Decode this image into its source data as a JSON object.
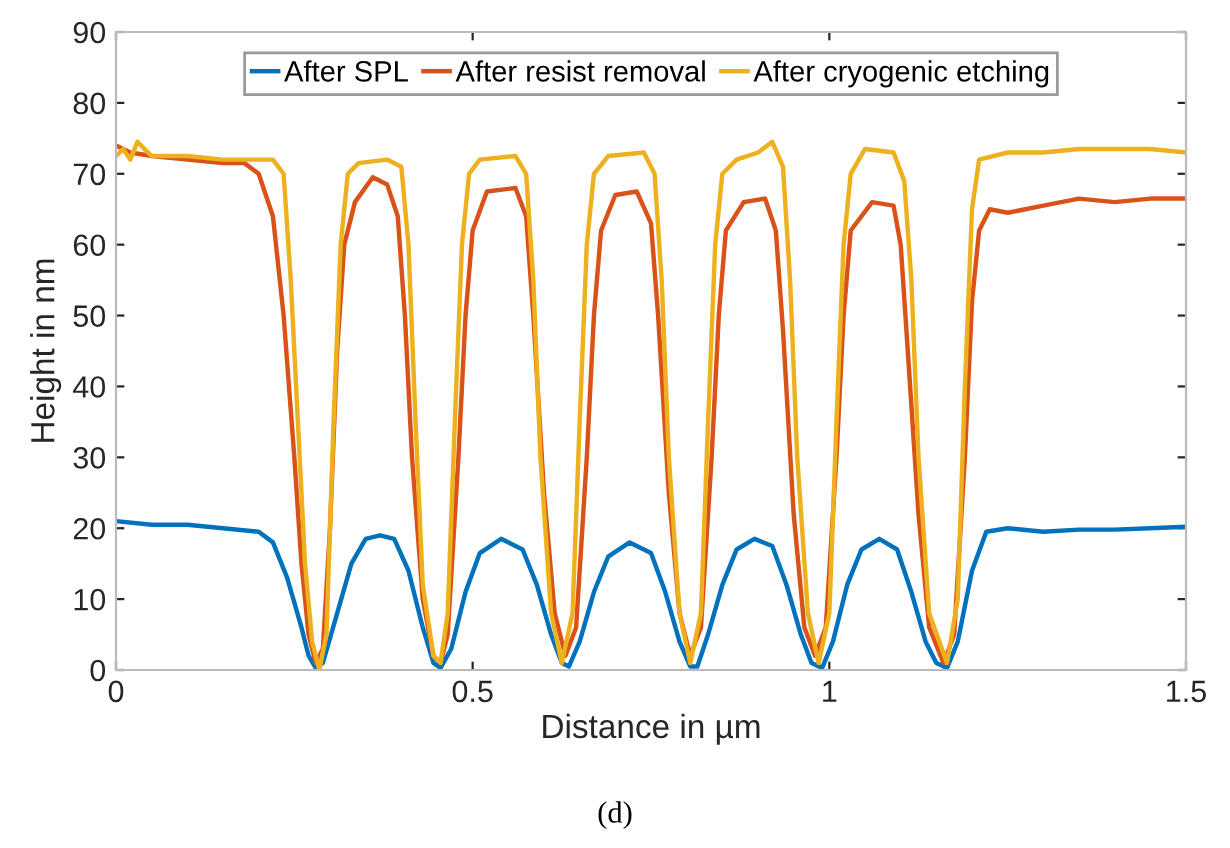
{
  "chart_data": {
    "type": "line",
    "xlabel": "Distance in µm",
    "ylabel": "Height in nm",
    "xlim": [
      0,
      1.5
    ],
    "xticks": [
      0,
      0.5,
      1,
      1.5
    ],
    "ylim": [
      0,
      90
    ],
    "yticks": [
      0,
      10,
      20,
      30,
      40,
      50,
      60,
      70,
      80,
      90
    ],
    "grid": false,
    "legend": "top",
    "marker": "none",
    "line_style": "solid",
    "annotations": [
      "(d)"
    ],
    "series": [
      {
        "name": "After SPL",
        "color": "#0072bd",
        "x": [
          0,
          0.05,
          0.1,
          0.15,
          0.2,
          0.22,
          0.24,
          0.26,
          0.27,
          0.28,
          0.29,
          0.31,
          0.33,
          0.35,
          0.37,
          0.39,
          0.41,
          0.43,
          0.445,
          0.455,
          0.47,
          0.49,
          0.51,
          0.54,
          0.57,
          0.59,
          0.61,
          0.625,
          0.635,
          0.65,
          0.67,
          0.69,
          0.72,
          0.75,
          0.77,
          0.79,
          0.805,
          0.815,
          0.83,
          0.85,
          0.87,
          0.895,
          0.92,
          0.94,
          0.96,
          0.975,
          0.99,
          1.005,
          1.025,
          1.045,
          1.07,
          1.095,
          1.115,
          1.135,
          1.15,
          1.165,
          1.18,
          1.2,
          1.22,
          1.25,
          1.3,
          1.35,
          1.4,
          1.45,
          1.5
        ],
        "values": [
          21,
          20.5,
          20.5,
          20,
          19.5,
          18,
          13,
          6,
          2,
          0.3,
          1,
          8,
          15,
          18.5,
          19,
          18.5,
          14,
          6,
          1,
          0.3,
          3,
          11,
          16.5,
          18.5,
          17,
          12,
          5,
          1,
          0.5,
          4,
          11,
          16,
          18,
          16.5,
          11,
          4,
          0.5,
          0.5,
          5,
          12,
          17,
          18.5,
          17.5,
          12,
          5,
          1,
          0.3,
          4,
          12,
          17,
          18.5,
          17,
          11,
          4,
          1,
          0.3,
          4,
          14,
          19.5,
          20,
          19.5,
          19.8,
          19.8,
          20,
          20.2
        ]
      },
      {
        "name": "After resist removal",
        "color": "#d95319",
        "x": [
          0,
          0.02,
          0.05,
          0.1,
          0.15,
          0.18,
          0.2,
          0.22,
          0.235,
          0.25,
          0.26,
          0.27,
          0.28,
          0.29,
          0.3,
          0.31,
          0.32,
          0.335,
          0.36,
          0.38,
          0.395,
          0.405,
          0.415,
          0.43,
          0.445,
          0.455,
          0.465,
          0.48,
          0.49,
          0.5,
          0.52,
          0.56,
          0.575,
          0.585,
          0.6,
          0.615,
          0.63,
          0.645,
          0.66,
          0.67,
          0.68,
          0.7,
          0.73,
          0.75,
          0.76,
          0.775,
          0.79,
          0.805,
          0.82,
          0.835,
          0.845,
          0.855,
          0.88,
          0.91,
          0.925,
          0.935,
          0.95,
          0.965,
          0.98,
          0.995,
          1.01,
          1.02,
          1.03,
          1.06,
          1.09,
          1.1,
          1.11,
          1.125,
          1.14,
          1.16,
          1.175,
          1.19,
          1.2,
          1.21,
          1.225,
          1.25,
          1.3,
          1.35,
          1.4,
          1.45,
          1.5
        ],
        "values": [
          74,
          73,
          72.5,
          72,
          71.5,
          71.5,
          70,
          64,
          50,
          30,
          15,
          5,
          1,
          3,
          20,
          45,
          60,
          66,
          69.5,
          68.5,
          64,
          50,
          30,
          10,
          2,
          1,
          5,
          30,
          50,
          62,
          67.5,
          68,
          64,
          50,
          25,
          8,
          2,
          6,
          30,
          50,
          62,
          67,
          67.5,
          63,
          50,
          25,
          8,
          2,
          6,
          30,
          50,
          62,
          66,
          66.5,
          62,
          48,
          22,
          6,
          2,
          6,
          30,
          50,
          62,
          66,
          65.5,
          60,
          45,
          22,
          6,
          1,
          5,
          30,
          52,
          62,
          65,
          64.5,
          65.5,
          66.5,
          66,
          66.5,
          66.5
        ]
      },
      {
        "name": "After cryogenic etching",
        "color": "#edb120",
        "x": [
          0,
          0.01,
          0.02,
          0.03,
          0.05,
          0.1,
          0.15,
          0.2,
          0.22,
          0.235,
          0.245,
          0.255,
          0.265,
          0.275,
          0.285,
          0.295,
          0.305,
          0.315,
          0.325,
          0.34,
          0.38,
          0.4,
          0.41,
          0.42,
          0.43,
          0.445,
          0.455,
          0.465,
          0.475,
          0.485,
          0.495,
          0.51,
          0.56,
          0.575,
          0.585,
          0.595,
          0.61,
          0.625,
          0.64,
          0.65,
          0.66,
          0.67,
          0.69,
          0.74,
          0.755,
          0.765,
          0.775,
          0.79,
          0.805,
          0.82,
          0.83,
          0.84,
          0.85,
          0.87,
          0.9,
          0.92,
          0.935,
          0.945,
          0.955,
          0.97,
          0.985,
          1.0,
          1.01,
          1.02,
          1.03,
          1.05,
          1.09,
          1.105,
          1.115,
          1.125,
          1.14,
          1.165,
          1.18,
          1.19,
          1.2,
          1.21,
          1.25,
          1.3,
          1.35,
          1.4,
          1.45,
          1.5
        ],
        "values": [
          72.5,
          73.5,
          72,
          74.5,
          72.5,
          72.5,
          72,
          72,
          72,
          70,
          55,
          35,
          15,
          4,
          0,
          5,
          35,
          60,
          70,
          71.5,
          72,
          71,
          60,
          35,
          12,
          2,
          1,
          8,
          35,
          60,
          70,
          72,
          72.5,
          70,
          55,
          30,
          8,
          1,
          8,
          35,
          60,
          70,
          72.5,
          73,
          70,
          55,
          30,
          8,
          1,
          8,
          35,
          60,
          70,
          72,
          73,
          74.5,
          71,
          55,
          30,
          8,
          1,
          8,
          35,
          60,
          70,
          73.5,
          73,
          69,
          55,
          30,
          8,
          1,
          10,
          40,
          65,
          72,
          73,
          73,
          73.5,
          73.5,
          73.5,
          73
        ]
      }
    ]
  }
}
